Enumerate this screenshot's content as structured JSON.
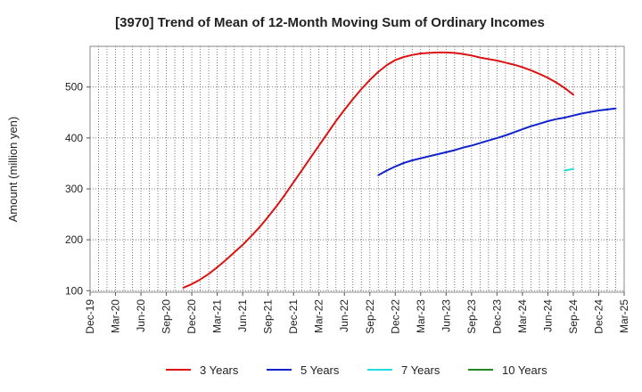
{
  "chart_data": {
    "type": "line",
    "title": "[3970]  Trend of Mean of 12-Month Moving Sum of Ordinary Incomes",
    "ylabel": "Amount (million yen)",
    "xlabel": "",
    "ylim": [
      97,
      580
    ],
    "x_range": [
      "2019-12",
      "2025-03"
    ],
    "yticks": [
      100,
      200,
      300,
      400,
      500
    ],
    "xticks": [
      {
        "label": "Dec-19",
        "date": "2019-12"
      },
      {
        "label": "Mar-20",
        "date": "2020-03"
      },
      {
        "label": "Jun-20",
        "date": "2020-06"
      },
      {
        "label": "Sep-20",
        "date": "2020-09"
      },
      {
        "label": "Dec-20",
        "date": "2020-12"
      },
      {
        "label": "Mar-21",
        "date": "2021-03"
      },
      {
        "label": "Jun-21",
        "date": "2021-06"
      },
      {
        "label": "Sep-21",
        "date": "2021-09"
      },
      {
        "label": "Dec-21",
        "date": "2021-12"
      },
      {
        "label": "Mar-22",
        "date": "2022-03"
      },
      {
        "label": "Jun-22",
        "date": "2022-06"
      },
      {
        "label": "Sep-22",
        "date": "2022-09"
      },
      {
        "label": "Dec-22",
        "date": "2022-12"
      },
      {
        "label": "Mar-23",
        "date": "2023-03"
      },
      {
        "label": "Jun-23",
        "date": "2023-06"
      },
      {
        "label": "Sep-23",
        "date": "2023-09"
      },
      {
        "label": "Dec-23",
        "date": "2023-12"
      },
      {
        "label": "Mar-24",
        "date": "2024-03"
      },
      {
        "label": "Jun-24",
        "date": "2024-06"
      },
      {
        "label": "Sep-24",
        "date": "2024-09"
      },
      {
        "label": "Dec-24",
        "date": "2024-12"
      },
      {
        "label": "Mar-25",
        "date": "2025-03"
      }
    ],
    "grid": true,
    "legend_position": "bottom",
    "series": [
      {
        "name": "3 Years",
        "color": "#dd1111",
        "points": [
          [
            "2020-11",
            106
          ],
          [
            "2020-12",
            113
          ],
          [
            "2021-01",
            122
          ],
          [
            "2021-02",
            133
          ],
          [
            "2021-03",
            146
          ],
          [
            "2021-04",
            160
          ],
          [
            "2021-05",
            175
          ],
          [
            "2021-06",
            190
          ],
          [
            "2021-07",
            207
          ],
          [
            "2021-08",
            225
          ],
          [
            "2021-09",
            245
          ],
          [
            "2021-10",
            266
          ],
          [
            "2021-11",
            289
          ],
          [
            "2021-12",
            313
          ],
          [
            "2022-01",
            337
          ],
          [
            "2022-02",
            361
          ],
          [
            "2022-03",
            385
          ],
          [
            "2022-04",
            409
          ],
          [
            "2022-05",
            433
          ],
          [
            "2022-06",
            455
          ],
          [
            "2022-07",
            476
          ],
          [
            "2022-08",
            496
          ],
          [
            "2022-09",
            514
          ],
          [
            "2022-10",
            530
          ],
          [
            "2022-11",
            543
          ],
          [
            "2022-12",
            553
          ],
          [
            "2023-01",
            559
          ],
          [
            "2023-02",
            563
          ],
          [
            "2023-03",
            566
          ],
          [
            "2023-04",
            567
          ],
          [
            "2023-05",
            568
          ],
          [
            "2023-06",
            568
          ],
          [
            "2023-07",
            567
          ],
          [
            "2023-08",
            565
          ],
          [
            "2023-09",
            562
          ],
          [
            "2023-10",
            558
          ],
          [
            "2023-11",
            555
          ],
          [
            "2023-12",
            552
          ],
          [
            "2024-01",
            548
          ],
          [
            "2024-02",
            544
          ],
          [
            "2024-03",
            539
          ],
          [
            "2024-04",
            533
          ],
          [
            "2024-05",
            526
          ],
          [
            "2024-06",
            518
          ],
          [
            "2024-07",
            509
          ],
          [
            "2024-08",
            498
          ],
          [
            "2024-09",
            485
          ]
        ]
      },
      {
        "name": "5 Years",
        "color": "#1122cc",
        "points": [
          [
            "2022-10",
            327
          ],
          [
            "2022-11",
            336
          ],
          [
            "2022-12",
            344
          ],
          [
            "2023-01",
            351
          ],
          [
            "2023-02",
            356
          ],
          [
            "2023-03",
            360
          ],
          [
            "2023-04",
            364
          ],
          [
            "2023-05",
            368
          ],
          [
            "2023-06",
            372
          ],
          [
            "2023-07",
            376
          ],
          [
            "2023-08",
            381
          ],
          [
            "2023-09",
            385
          ],
          [
            "2023-10",
            390
          ],
          [
            "2023-11",
            395
          ],
          [
            "2023-12",
            400
          ],
          [
            "2024-01",
            405
          ],
          [
            "2024-02",
            411
          ],
          [
            "2024-03",
            417
          ],
          [
            "2024-04",
            423
          ],
          [
            "2024-05",
            428
          ],
          [
            "2024-06",
            433
          ],
          [
            "2024-07",
            437
          ],
          [
            "2024-08",
            440
          ],
          [
            "2024-09",
            444
          ],
          [
            "2024-10",
            448
          ],
          [
            "2024-11",
            451
          ],
          [
            "2024-12",
            454
          ],
          [
            "2025-01",
            456
          ],
          [
            "2025-02",
            458
          ]
        ]
      },
      {
        "name": "7 Years",
        "color": "#22dddd",
        "points": [
          [
            "2024-08",
            336
          ],
          [
            "2024-09",
            339
          ]
        ]
      },
      {
        "name": "10 Years",
        "color": "#228822",
        "points": []
      }
    ]
  }
}
